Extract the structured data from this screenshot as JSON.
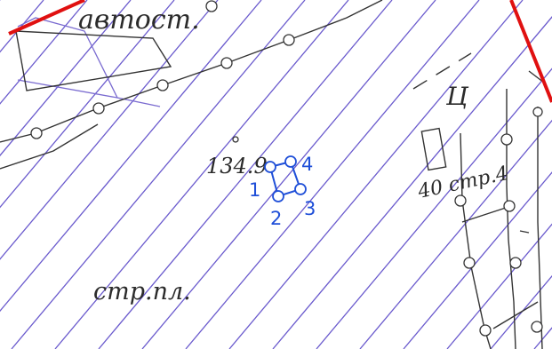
{
  "labels": {
    "avtost": "автост.",
    "elevation": "134.9",
    "ts": "Ц",
    "str4": "40 стр.4",
    "strpl": "стр.пл."
  },
  "points": [
    {
      "num": "1"
    },
    {
      "num": "2"
    },
    {
      "num": "3"
    },
    {
      "num": "4"
    }
  ],
  "colors": {
    "hatch": "#6a5acd",
    "boundary": "#e01010",
    "parcel": "#1f4fd8",
    "linework": "#333333"
  }
}
